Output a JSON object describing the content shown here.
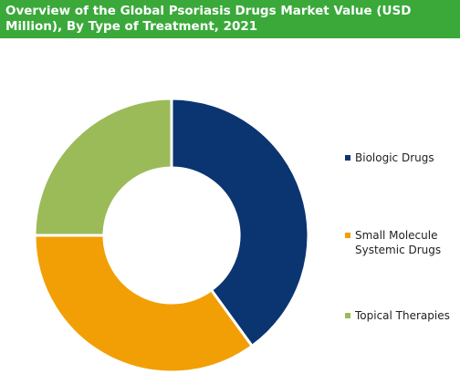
{
  "chart_data": {
    "type": "donut",
    "title": "Overview of the Global Psoriasis Drugs Market Value (USD Million), By Type of Treatment, 2021",
    "categories": [
      "Biologic Drugs",
      "Small Molecule Systemic Drugs",
      "Topical Therapies"
    ],
    "values": [
      40,
      35,
      25
    ],
    "colors": [
      "#0b3571",
      "#f29f05",
      "#9bbb59"
    ],
    "legend": "right"
  }
}
